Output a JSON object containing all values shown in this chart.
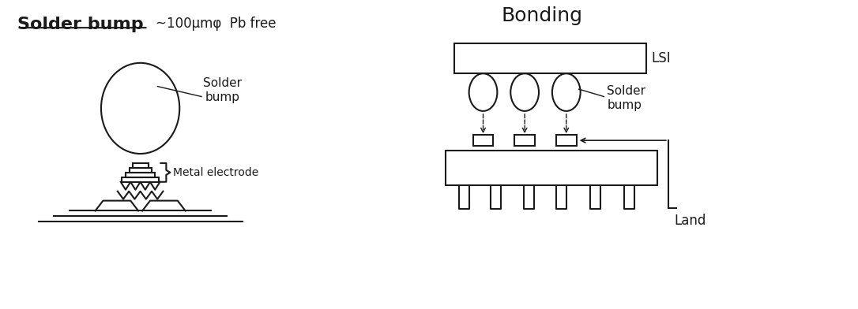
{
  "bg_color": "#ffffff",
  "line_color": "#1a1a1a",
  "title_left": "Solder bump",
  "title_left_sub": "~100μmφ  Pb free",
  "title_right": "Bonding",
  "label_solder_bump_left": "Solder\nbump",
  "label_metal_electrode": "Metal electrode",
  "label_lsi": "LSI",
  "label_solder_bump_right": "Solder\nbump",
  "label_land": "Land",
  "lw": 1.5
}
